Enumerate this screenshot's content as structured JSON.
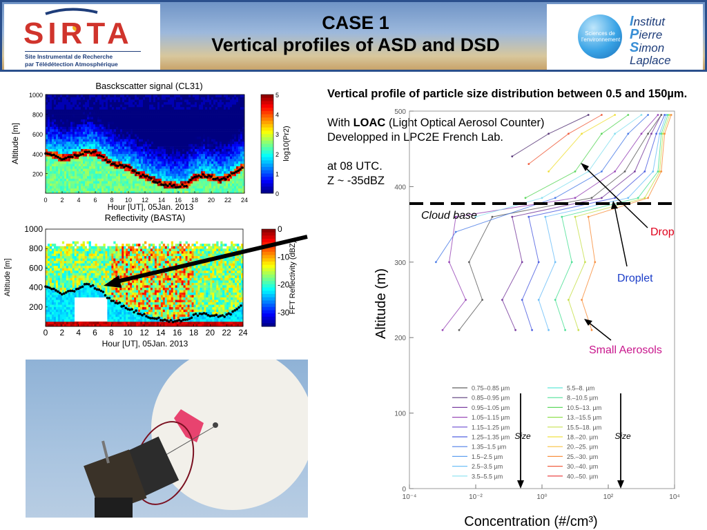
{
  "header": {
    "title_line1": "CASE 1",
    "title_line2": "Vertical profiles of ASD and DSD",
    "sirta": {
      "wordmark": "SIRTA",
      "sub1": "Site Instrumental de Recherche",
      "sub2": "par Télédétection Atmosphérique"
    },
    "ipsl": {
      "globe_text": "Sciences de l'environnement",
      "l1a": "I",
      "l1b": "nstitut",
      "l2a": "P",
      "l2b": "ierre",
      "l3a": "S",
      "l3b": "imon",
      "l4": "Laplace"
    }
  },
  "description": {
    "heading": "Vertical profile of particle size distribution between 0.5 and 150µm.",
    "with_prefix": "With",
    "loac": "LOAC",
    "loac_expansion": "(Light Optical Aerosol Counter)",
    "developed": "Developped in LPC2E French Lab.",
    "time": "at 08 UTC.",
    "z": "Z ~ -35dBZ"
  },
  "colors": {
    "drop": "#e0001b",
    "droplet": "#1a3cc8",
    "small_aerosols": "#c8158c",
    "header_border": "#2a4f8c"
  },
  "chart_data": [
    {
      "type": "heatmap",
      "title": "Basckscatter signal (CL31)",
      "xlabel": "Hour [UT], 05Jan. 2013",
      "ylabel": "Altitude [m]",
      "xlim": [
        0,
        24
      ],
      "ylim": [
        0,
        1000
      ],
      "xticks": [
        "0",
        "2",
        "4",
        "6",
        "8",
        "10",
        "12",
        "14",
        "16",
        "18",
        "20",
        "22",
        "24"
      ],
      "yticks": [
        "200",
        "400",
        "600",
        "800",
        "1000"
      ],
      "colorbar": {
        "label": "log10(Pr2)",
        "ticks": [
          "0",
          "1",
          "2",
          "3",
          "4",
          "5"
        ],
        "range": [
          0,
          5
        ]
      },
      "trace_x": [
        0,
        1,
        2,
        3,
        4,
        5,
        6,
        7,
        8,
        9,
        10,
        11,
        12,
        13,
        14,
        15,
        16,
        17,
        18,
        19,
        20,
        21,
        22,
        23,
        24
      ],
      "trace_y": [
        400,
        390,
        350,
        370,
        390,
        420,
        410,
        360,
        300,
        280,
        260,
        200,
        170,
        130,
        100,
        80,
        70,
        80,
        160,
        180,
        160,
        140,
        160,
        220,
        280
      ]
    },
    {
      "type": "heatmap",
      "title": "Reflectivity (BASTA)",
      "xlabel": "Hour [UT], 05Jan. 2013",
      "ylabel": "Altitude [m]",
      "xlim": [
        0,
        24
      ],
      "ylim": [
        0,
        1000
      ],
      "xticks": [
        "0",
        "2",
        "4",
        "6",
        "8",
        "10",
        "12",
        "14",
        "16",
        "18",
        "20",
        "22",
        "24"
      ],
      "yticks": [
        "200",
        "400",
        "600",
        "800",
        "1000"
      ],
      "colorbar": {
        "label": "FFT Reflectivity (dBZ)",
        "ticks": [
          "0",
          "-10",
          "-20",
          "-30"
        ],
        "range": [
          -35,
          0
        ]
      },
      "trace_x": [
        0,
        1,
        2,
        3,
        4,
        5,
        6,
        7,
        8,
        9,
        10,
        11,
        12,
        13,
        14,
        15,
        16,
        17,
        18,
        19,
        20,
        21,
        22,
        23,
        24
      ],
      "trace_y": [
        400,
        380,
        330,
        360,
        390,
        430,
        400,
        340,
        260,
        230,
        190,
        150,
        120,
        90,
        70,
        60,
        60,
        70,
        110,
        140,
        120,
        100,
        110,
        160,
        230
      ]
    },
    {
      "type": "line",
      "title": "",
      "xlabel": "Concentration (#/cm³)",
      "ylabel": "Altitude (m)",
      "xscale": "log",
      "xlim": [
        0.0001,
        10000
      ],
      "ylim": [
        0,
        500
      ],
      "xticks": [
        "10⁻⁴",
        "10⁻²",
        "10⁰",
        "10²",
        "10⁴"
      ],
      "yticks": [
        "0",
        "100",
        "200",
        "300",
        "400",
        "500"
      ],
      "cloud_base_altitude": 385,
      "annotations": {
        "cloud_base": "Cloud base",
        "drop": "Drop",
        "droplet": "Droplet",
        "small_aerosols": "Small Aerosols",
        "size": "Size"
      },
      "legend_col1": [
        "0.75–0.85 µm",
        "0.85–0.95 µm",
        "0.95–1.05 µm",
        "1.05–1.15 µm",
        "1.15–1.25 µm",
        "1.25–1.35 µm",
        "1.35–1.5 µm",
        "1.5–2.5 µm",
        "2.5–3.5 µm",
        "3.5–5.5 µm"
      ],
      "legend_col2": [
        "5.5–8. µm",
        "8.–10.5 µm",
        "10.5–13. µm",
        "13.–15.5 µm",
        "15.5–18. µm",
        "18.–20. µm",
        "20.–25. µm",
        "25.–30. µm",
        "30.–40. µm",
        "40.–50. µm"
      ],
      "legend_colors": [
        "#606060",
        "#5a3a7a",
        "#7a3fa0",
        "#9a4ab8",
        "#6a4ad0",
        "#5060e0",
        "#4f7fe8",
        "#60a0f0",
        "#70c0f8",
        "#88e0f0",
        "#60e8d8",
        "#50e098",
        "#60d860",
        "#90e050",
        "#c8e050",
        "#f0e040",
        "#f8c040",
        "#f89040",
        "#f06040",
        "#e83030"
      ],
      "series": [
        {
          "altitude": [
            210,
            250,
            300,
            360,
            385,
            420,
            470,
            495
          ],
          "log10_conc": [
            -0.8,
            -1.2,
            -0.6,
            -0.9,
            1.8,
            2.8,
            3.3,
            3.6
          ]
        },
        {
          "altitude": [
            210,
            250,
            300,
            360,
            385,
            420,
            470,
            495
          ],
          "log10_conc": [
            -0.3,
            -0.6,
            -0.1,
            -0.4,
            2.2,
            3.1,
            3.45,
            3.7
          ]
        },
        {
          "altitude": [
            210,
            250,
            300,
            360,
            385,
            420,
            470,
            495
          ],
          "log10_conc": [
            0.2,
            -0.1,
            0.4,
            0.1,
            2.6,
            3.35,
            3.55,
            3.75
          ]
        },
        {
          "altitude": [
            210,
            250,
            300,
            360,
            385,
            420,
            470,
            495
          ],
          "log10_conc": [
            0.7,
            0.4,
            0.9,
            0.6,
            2.9,
            3.5,
            3.6,
            3.8
          ]
        },
        {
          "altitude": [
            210,
            250,
            300,
            360,
            385,
            420,
            470,
            495
          ],
          "log10_conc": [
            1.1,
            0.8,
            1.3,
            1.0,
            3.1,
            3.55,
            3.65,
            3.85
          ]
        },
        {
          "altitude": [
            210,
            250,
            300,
            360,
            385,
            420,
            470,
            495
          ],
          "log10_conc": [
            1.5,
            1.2,
            1.6,
            1.4,
            3.2,
            3.6,
            3.7,
            3.9
          ]
        },
        {
          "altitude": [
            210,
            250,
            300,
            360,
            385,
            420,
            470,
            495
          ],
          "log10_conc": [
            -2.5,
            -1.8,
            -2.2,
            -1.5,
            1.5,
            2.5,
            3.2,
            3.6
          ]
        },
        {
          "altitude": [
            210,
            250,
            300,
            360,
            385,
            420,
            470,
            495
          ],
          "log10_conc": [
            -3.0,
            -2.3,
            -2.8,
            -2.6,
            1.0,
            2.2,
            3.0,
            3.5
          ]
        },
        {
          "altitude": [
            300,
            340,
            385,
            420,
            470,
            495
          ],
          "log10_conc": [
            -3.2,
            -2.6,
            0.4,
            1.8,
            2.6,
            3.2
          ]
        },
        {
          "altitude": [
            360,
            385,
            420,
            470,
            495
          ],
          "log10_conc": [
            -2.0,
            0.0,
            1.4,
            2.2,
            3.0
          ]
        },
        {
          "altitude": [
            385,
            420,
            470,
            495
          ],
          "log10_conc": [
            -0.5,
            1.0,
            1.8,
            2.6
          ]
        },
        {
          "altitude": [
            420,
            470,
            495
          ],
          "log10_conc": [
            0.2,
            1.2,
            2.2
          ]
        },
        {
          "altitude": [
            430,
            470,
            495
          ],
          "log10_conc": [
            -0.4,
            0.8,
            1.8
          ]
        },
        {
          "altitude": [
            440,
            470,
            495
          ],
          "log10_conc": [
            -0.9,
            0.2,
            1.4
          ]
        }
      ]
    }
  ]
}
